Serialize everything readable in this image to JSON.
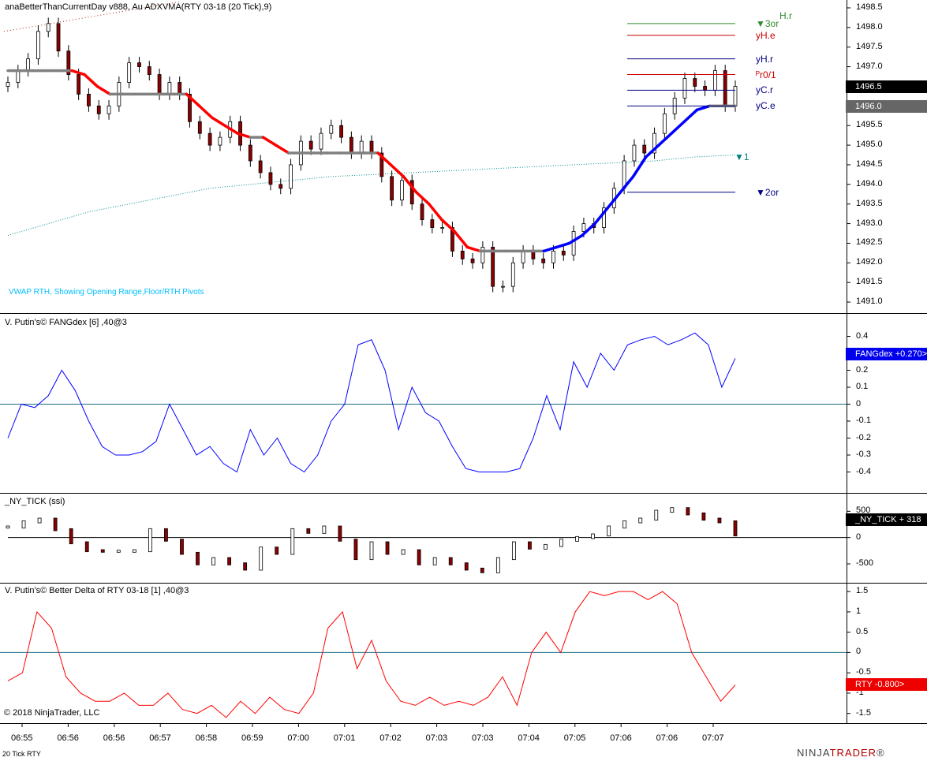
{
  "chart_data": [
    {
      "type": "candlestick",
      "title": "anaBetterThanCurrentDay v888, Au ADXVMA(RTY 03-18 (20 Tick),9)",
      "subtitle": "VWAP RTH, Showing Opening Range,Floor/RTH Pivots",
      "y_ticks": [
        1498.5,
        1498.0,
        1497.5,
        1497.0,
        1496.5,
        1496.0,
        1495.5,
        1495.0,
        1494.5,
        1494.0,
        1493.5,
        1493.0,
        1492.5,
        1492.0,
        1491.5,
        1491.0
      ],
      "ylim": [
        1490.8,
        1498.6
      ],
      "last_price": "1496.5",
      "adxvma_value": "1496.0",
      "close_approx": [
        1496.6,
        1496.9,
        1497.2,
        1497.9,
        1498.1,
        1497.4,
        1496.8,
        1496.3,
        1496.0,
        1495.8,
        1496.0,
        1496.6,
        1497.1,
        1497.0,
        1496.8,
        1496.3,
        1496.6,
        1496.3,
        1495.6,
        1495.3,
        1495.0,
        1495.2,
        1495.6,
        1495.0,
        1494.6,
        1494.3,
        1494.0,
        1493.9,
        1494.5,
        1495.1,
        1494.9,
        1495.3,
        1495.5,
        1495.2,
        1494.8,
        1495.1,
        1494.8,
        1494.2,
        1493.6,
        1494.1,
        1493.5,
        1493.1,
        1492.9,
        1492.9,
        1492.3,
        1492.1,
        1492.0,
        1492.4,
        1491.4,
        1491.4,
        1492.0,
        1492.3,
        1492.1,
        1492.0,
        1492.3,
        1492.2,
        1492.8,
        1493.0,
        1492.9,
        1493.4,
        1493.9,
        1494.6,
        1495.0,
        1494.8,
        1495.3,
        1495.8,
        1496.2,
        1496.7,
        1496.5,
        1496.4,
        1496.9,
        1496.0,
        1496.5
      ],
      "adxvma_approx": [
        1496.9,
        1496.9,
        1496.9,
        1496.9,
        1496.9,
        1496.9,
        1496.8,
        1496.5,
        1496.3,
        1496.3,
        1496.3,
        1496.3,
        1496.3,
        1496.3,
        1496.3,
        1496.0,
        1495.7,
        1495.5,
        1495.3,
        1495.2,
        1495.2,
        1495.0,
        1494.8,
        1494.8,
        1494.8,
        1494.8,
        1494.8,
        1494.8,
        1494.8,
        1494.8,
        1494.5,
        1494.2,
        1493.8,
        1493.5,
        1493.1,
        1492.8,
        1492.4,
        1492.3,
        1492.3,
        1492.3,
        1492.3,
        1492.3,
        1492.3,
        1492.4,
        1492.5,
        1492.7,
        1493.0,
        1493.4,
        1493.8,
        1494.2,
        1494.7,
        1495.0,
        1495.3,
        1495.6,
        1495.9,
        1496.0,
        1496.0,
        1496.0
      ],
      "vwap_approx": [
        1492.7,
        1493.0,
        1493.3,
        1493.5,
        1493.7,
        1493.9,
        1494.0,
        1494.1,
        1494.2,
        1494.25,
        1494.3,
        1494.35,
        1494.4,
        1494.45,
        1494.5,
        1494.55,
        1494.6,
        1494.7,
        1494.75
      ],
      "levels": [
        {
          "label": "H.r",
          "value": 1498.3,
          "color": "#2e8b2e"
        },
        {
          "label": "▼3or",
          "value": 1498.1,
          "color": "#2e8b2e"
        },
        {
          "label": "yH.e",
          "value": 1497.8,
          "color": "#cc0000"
        },
        {
          "label": "yH.r",
          "value": 1497.2,
          "color": "#000080"
        },
        {
          "label": "ᴾr0/1",
          "value": 1496.8,
          "color": "#cc0000"
        },
        {
          "label": "yC.r",
          "value": 1496.4,
          "color": "#000080"
        },
        {
          "label": "yC.e",
          "value": 1496.0,
          "color": "#000080"
        },
        {
          "label": "▼1",
          "value": 1494.7,
          "color": "#008080"
        },
        {
          "label": "▼2or",
          "value": 1493.8,
          "color": "#000080"
        }
      ]
    },
    {
      "type": "line",
      "title": "V. Putin's© FANGdex [6] ,40@3",
      "y_ticks": [
        0.4,
        0.3,
        0.2,
        0.1,
        0,
        -0.1,
        -0.2,
        -0.3,
        -0.4
      ],
      "ylim": [
        -0.5,
        0.5
      ],
      "values": [
        -0.2,
        0.0,
        -0.02,
        0.05,
        0.2,
        0.08,
        -0.1,
        -0.25,
        -0.3,
        -0.3,
        -0.28,
        -0.22,
        0.0,
        -0.15,
        -0.3,
        -0.25,
        -0.35,
        -0.4,
        -0.15,
        -0.3,
        -0.2,
        -0.35,
        -0.4,
        -0.3,
        -0.1,
        0.0,
        0.35,
        0.38,
        0.2,
        -0.15,
        0.1,
        -0.05,
        -0.1,
        -0.25,
        -0.38,
        -0.4,
        -0.4,
        -0.4,
        -0.38,
        -0.2,
        0.05,
        -0.15,
        0.25,
        0.1,
        0.3,
        0.2,
        0.35,
        0.38,
        0.4,
        0.35,
        0.38,
        0.42,
        0.35,
        0.1,
        0.27
      ],
      "series_name": "FANGdex",
      "last_value": "+0.270",
      "tag_text": "FANGdex +0.270>",
      "color": "#0000ff"
    },
    {
      "type": "bar",
      "title": "_NY_TICK (ssi)",
      "y_ticks": [
        500,
        0,
        -500
      ],
      "ylim": [
        -800,
        700
      ],
      "values": [
        200,
        300,
        350,
        150,
        -100,
        -250,
        -260,
        -260,
        -250,
        150,
        -50,
        -300,
        -500,
        -400,
        -500,
        -600,
        -200,
        -300,
        150,
        100,
        200,
        -50,
        -400,
        -100,
        -300,
        -250,
        -500,
        -400,
        -500,
        -600,
        -650,
        -400,
        -100,
        -200,
        -150,
        -50,
        0,
        50,
        200,
        300,
        350,
        500,
        550,
        450,
        350,
        300,
        50
      ],
      "last_value": "318",
      "tag_text": "_NY_TICK  + 318",
      "color": "#000000"
    },
    {
      "type": "line",
      "title": "V. Putin's© Better Delta of RTY 03-18 [1] ,40@3",
      "y_ticks": [
        1.5,
        1,
        0.5,
        0,
        -0.5,
        -1,
        -1.5
      ],
      "ylim": [
        -1.7,
        1.6
      ],
      "values": [
        -0.7,
        -0.5,
        1.0,
        0.6,
        -0.6,
        -1.0,
        -1.2,
        -1.2,
        -1.0,
        -1.3,
        -1.3,
        -1.0,
        -1.4,
        -1.5,
        -1.3,
        -1.6,
        -1.2,
        -1.5,
        -1.1,
        -1.4,
        -1.5,
        -1.0,
        0.6,
        1.0,
        -0.4,
        0.3,
        -0.7,
        -1.2,
        -1.3,
        -1.1,
        -1.3,
        -1.2,
        -1.3,
        -1.1,
        -0.6,
        -1.3,
        0.0,
        0.5,
        0.0,
        1.0,
        1.5,
        1.4,
        1.5,
        1.5,
        1.3,
        1.5,
        1.2,
        0.0,
        -0.6,
        -1.2,
        -0.8
      ],
      "series_name": "RTY",
      "last_value": "-0.800",
      "tag_text": "RTY -0.800>",
      "color": "#ff0000"
    }
  ],
  "x_axis": {
    "labels": [
      "06:55",
      "06:56",
      "06:56",
      "06:57",
      "06:58",
      "06:59",
      "07:00",
      "07:01",
      "07:02",
      "07:03",
      "07:03",
      "07:04",
      "07:05",
      "07:06",
      "07:06",
      "07:07"
    ],
    "period": "20 Tick RTY"
  },
  "copyright": "© 2018 NinjaTrader, LLC",
  "logo": {
    "prefix": "NINJA",
    "suffix": "TRADER",
    "suffix_mark": "®"
  },
  "colors": {
    "up_trend": "#0000ff",
    "down_trend": "#ff0000",
    "flat": "#808080",
    "vwap": "#008b8b"
  }
}
